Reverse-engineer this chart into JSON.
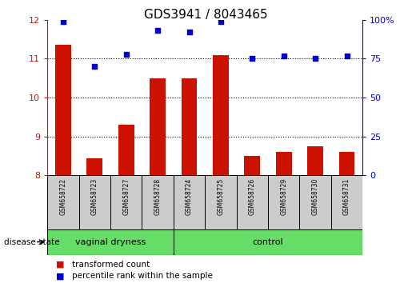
{
  "title": "GDS3941 / 8043465",
  "samples": [
    "GSM658722",
    "GSM658723",
    "GSM658727",
    "GSM658728",
    "GSM658724",
    "GSM658725",
    "GSM658726",
    "GSM658729",
    "GSM658730",
    "GSM658731"
  ],
  "bar_values": [
    11.35,
    8.45,
    9.3,
    10.5,
    10.5,
    11.1,
    8.5,
    8.6,
    8.75,
    8.6
  ],
  "dot_values": [
    99,
    70,
    78,
    93,
    92,
    99,
    75,
    77,
    75,
    77
  ],
  "ylim_left": [
    8,
    12
  ],
  "ylim_right": [
    0,
    100
  ],
  "yticks_left": [
    8,
    9,
    10,
    11,
    12
  ],
  "yticks_right": [
    0,
    25,
    50,
    75,
    100
  ],
  "bar_color": "#cc1100",
  "dot_color": "#0000cc",
  "n_vaginal": 4,
  "n_control": 6,
  "group_color": "#66dd66",
  "tick_bg_color": "#cccccc",
  "legend_bar_label": "transformed count",
  "legend_dot_label": "percentile rank within the sample",
  "disease_state_label": "disease state",
  "vaginal_label": "vaginal dryness",
  "control_label": "control",
  "right_axis_color": "#0000cc",
  "left_axis_color": "#cc1100",
  "title_fontsize": 11,
  "axis_label_fontsize": 8,
  "sample_label_fontsize": 5.5,
  "group_label_fontsize": 8,
  "legend_fontsize": 7.5
}
